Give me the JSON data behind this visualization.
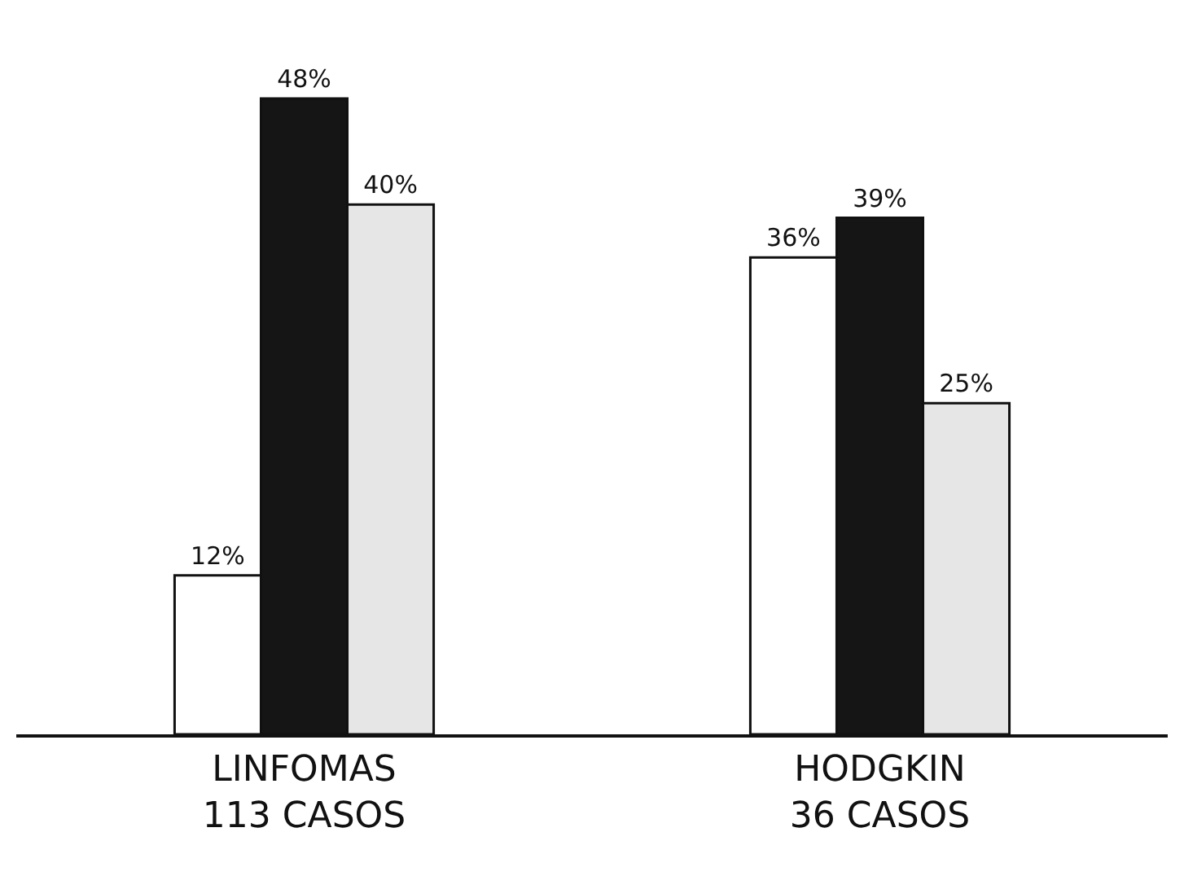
{
  "chart_data": {
    "type": "bar",
    "categories": [
      "LINFOMAS\n113 CASOS",
      "HODGKIN\n36 CASOS"
    ],
    "series": [
      {
        "color": "#ffffff",
        "values": [
          12,
          36
        ],
        "value_labels": [
          "12%",
          "36%"
        ]
      },
      {
        "color": "#151515",
        "values": [
          48,
          39
        ],
        "value_labels": [
          "48%",
          "39%"
        ]
      },
      {
        "color": "#e6e6e6",
        "values": [
          40,
          25
        ],
        "value_labels": [
          "40%",
          "25%"
        ]
      }
    ],
    "grid": false
  }
}
